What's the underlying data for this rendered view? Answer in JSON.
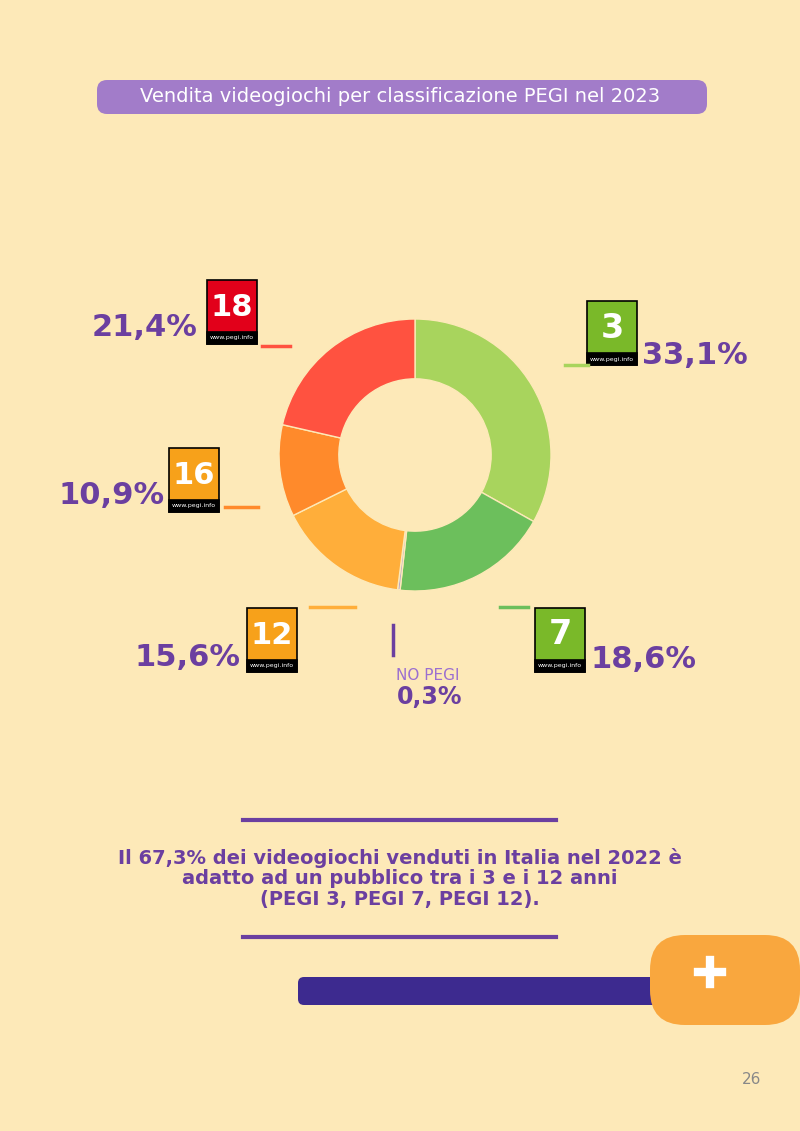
{
  "chart_data": {
    "type": "pie",
    "title": "Vendita videogiochi per classificazione PEGI nel 2023",
    "categories": [
      "3",
      "7",
      "NO PEGI",
      "12",
      "16",
      "18"
    ],
    "values": [
      33.1,
      18.6,
      0.3,
      15.6,
      10.9,
      21.4
    ],
    "value_labels": [
      "33,1%",
      "18,6%",
      "0,3%",
      "15,6%",
      "10,9%",
      "21,4%"
    ],
    "colors": [
      "#a8d45d",
      "#6cbf5c",
      "#b6a6c9",
      "#ffae3a",
      "#ff8a2b",
      "#ff5240"
    ],
    "data_labels": true,
    "icon_text": "www.pegi.info",
    "annotations": [
      "Il 67,3% dei videogiochi venduti in Italia nel 2022 è\nadatto ad un pubblico tra i 3 e i 12 anni\n(PEGI 3, PEGI 7, PEGI 12).",
      "26"
    ]
  }
}
